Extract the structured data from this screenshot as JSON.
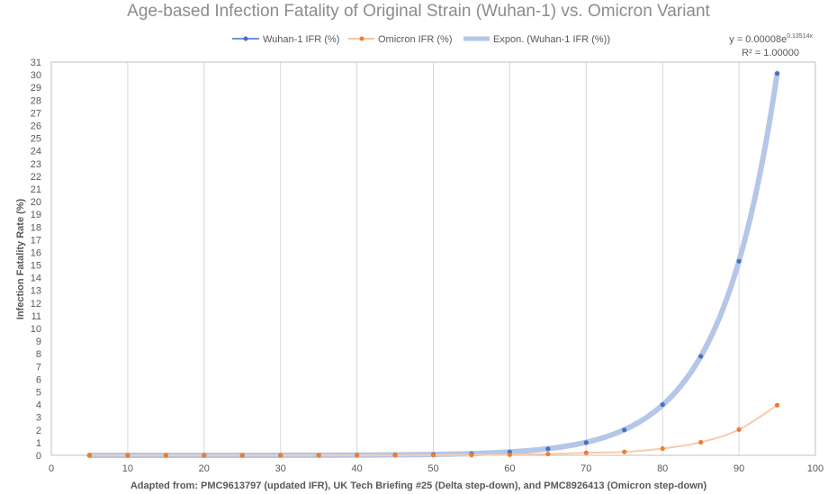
{
  "chart_data": {
    "type": "scatter",
    "title": "Age-based Infection Fatality of Original Strain (Wuhan-1) vs. Omicron Variant",
    "xlabel": "Adapted from: PMC9613797 (updated IFR), UK Tech Briefing #25 (Delta step-down), and PMC8926413 (Omicron step-down)",
    "ylabel": "Infection Fatality Rate (%)",
    "xlim": [
      0,
      100
    ],
    "ylim": [
      0,
      31
    ],
    "x_ticks": [
      0,
      10,
      20,
      30,
      40,
      50,
      60,
      70,
      80,
      90,
      100
    ],
    "y_ticks": [
      0,
      1,
      2,
      3,
      4,
      5,
      6,
      7,
      8,
      9,
      10,
      11,
      12,
      13,
      14,
      15,
      16,
      17,
      18,
      19,
      20,
      21,
      22,
      23,
      24,
      25,
      26,
      27,
      28,
      29,
      30,
      31
    ],
    "grid": "vertical",
    "legend_position": "top",
    "series": [
      {
        "name": "Wuhan-1 IFR (%)",
        "color": "#4472c4",
        "x": [
          5,
          10,
          15,
          20,
          25,
          30,
          35,
          40,
          45,
          50,
          55,
          60,
          65,
          70,
          75,
          80,
          85,
          90,
          95
        ],
        "y": [
          0.0002,
          0.0003,
          0.0006,
          0.0012,
          0.0024,
          0.0047,
          0.0092,
          0.018,
          0.035,
          0.068,
          0.13,
          0.26,
          0.51,
          1.0,
          2.0,
          4.0,
          7.8,
          15.3,
          30.1
        ]
      },
      {
        "name": "Omicron IFR (%)",
        "color": "#ed7d31",
        "x": [
          5,
          10,
          15,
          20,
          25,
          30,
          35,
          40,
          45,
          50,
          55,
          60,
          65,
          70,
          75,
          80,
          85,
          90,
          95
        ],
        "y": [
          0.0,
          0.0,
          0.0,
          0.0,
          0.0,
          0.001,
          0.002,
          0.004,
          0.007,
          0.014,
          0.027,
          0.05,
          0.1,
          0.2,
          0.27,
          0.53,
          1.03,
          2.03,
          3.95
        ]
      }
    ],
    "trendline": {
      "name": "Expon. (Wuhan-1 IFR (%))",
      "color": "#b4c7e7",
      "coefficient": 8e-05,
      "exponent": 0.13514,
      "x_range": [
        5,
        95
      ],
      "equation_prefix": "y = 0.00008e",
      "equation_exponent": "0.13514x",
      "r_squared": "R² = 1.00000"
    },
    "omicron_trend_color": "#f8cbad"
  }
}
